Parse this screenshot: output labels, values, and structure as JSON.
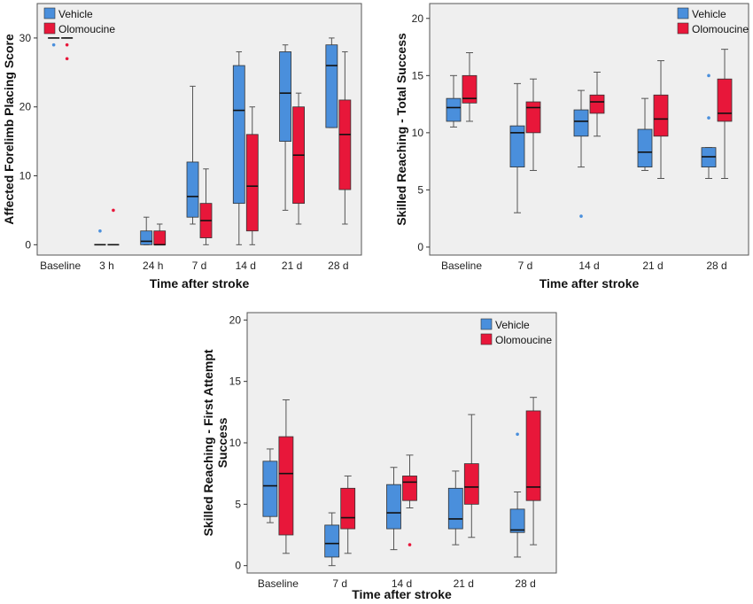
{
  "colors": {
    "vehicle": "#4a8fdc",
    "olomoucine": "#e8173a",
    "plot_bg": "#efefef",
    "frame": "#555555"
  },
  "chart_data": [
    {
      "type": "box",
      "id": "forelimb",
      "xlabel": "Time after stroke",
      "ylabel": "Affected Forelimb Placing Score",
      "ylim": [
        -1.5,
        35
      ],
      "yticks": [
        0,
        10,
        20,
        30
      ],
      "categories": [
        "Baseline",
        "3 h",
        "24 h",
        "7 d",
        "14 d",
        "21 d",
        "28 d"
      ],
      "legend": [
        "Vehicle",
        "Olomoucine"
      ],
      "series": [
        {
          "name": "Vehicle",
          "boxes": [
            {
              "min": 30,
              "q1": 30,
              "median": 30,
              "q3": 30,
              "max": 30,
              "outliers": [
                29
              ]
            },
            {
              "min": 0,
              "q1": 0,
              "median": 0,
              "q3": 0,
              "max": 0,
              "outliers": [
                2
              ]
            },
            {
              "min": 0,
              "q1": 0,
              "median": 0.5,
              "q3": 2,
              "max": 4,
              "outliers": []
            },
            {
              "min": 3,
              "q1": 4,
              "median": 7,
              "q3": 12,
              "max": 23,
              "outliers": []
            },
            {
              "min": 0,
              "q1": 6,
              "median": 19.5,
              "q3": 26,
              "max": 28,
              "outliers": []
            },
            {
              "min": 5,
              "q1": 15,
              "median": 22,
              "q3": 28,
              "max": 29,
              "outliers": []
            },
            {
              "min": 17,
              "q1": 17,
              "median": 26,
              "q3": 29,
              "max": 30,
              "outliers": []
            }
          ]
        },
        {
          "name": "Olomoucine",
          "boxes": [
            {
              "min": 30,
              "q1": 30,
              "median": 30,
              "q3": 30,
              "max": 30,
              "outliers": [
                29,
                27
              ]
            },
            {
              "min": 0,
              "q1": 0,
              "median": 0,
              "q3": 0,
              "max": 0,
              "outliers": [
                5
              ]
            },
            {
              "min": 0,
              "q1": 0,
              "median": 0,
              "q3": 2,
              "max": 3,
              "outliers": []
            },
            {
              "min": 0,
              "q1": 1,
              "median": 3.5,
              "q3": 6,
              "max": 11,
              "outliers": []
            },
            {
              "min": 0,
              "q1": 2,
              "median": 8.5,
              "q3": 16,
              "max": 20,
              "outliers": []
            },
            {
              "min": 3,
              "q1": 6,
              "median": 13,
              "q3": 20,
              "max": 22,
              "outliers": []
            },
            {
              "min": 3,
              "q1": 8,
              "median": 16,
              "q3": 21,
              "max": 28,
              "outliers": []
            }
          ]
        }
      ]
    },
    {
      "type": "box",
      "id": "total",
      "xlabel": "Time after stroke",
      "ylabel": "Skilled Reaching - Total Success",
      "ylim": [
        -0.7,
        21.3
      ],
      "yticks": [
        0,
        5,
        10,
        15,
        20
      ],
      "categories": [
        "Baseline",
        "7 d",
        "14 d",
        "21 d",
        "28 d"
      ],
      "legend": [
        "Vehicle",
        "Olomoucine"
      ],
      "series": [
        {
          "name": "Vehicle",
          "boxes": [
            {
              "min": 10.5,
              "q1": 11,
              "median": 12.2,
              "q3": 13,
              "max": 15,
              "outliers": []
            },
            {
              "min": 3,
              "q1": 7,
              "median": 10,
              "q3": 10.6,
              "max": 14.3,
              "outliers": []
            },
            {
              "min": 7,
              "q1": 9.7,
              "median": 11,
              "q3": 12,
              "max": 13.7,
              "outliers": [
                2.7
              ]
            },
            {
              "min": 6.7,
              "q1": 7,
              "median": 8.3,
              "q3": 10.3,
              "max": 13,
              "outliers": []
            },
            {
              "min": 6,
              "q1": 7,
              "median": 7.9,
              "q3": 8.7,
              "max": 8.7,
              "outliers": [
                15,
                11.3
              ]
            }
          ]
        },
        {
          "name": "Olomoucine",
          "boxes": [
            {
              "min": 11,
              "q1": 12.6,
              "median": 13,
              "q3": 15,
              "max": 17,
              "outliers": []
            },
            {
              "min": 6.7,
              "q1": 10,
              "median": 12.2,
              "q3": 12.7,
              "max": 14.7,
              "outliers": []
            },
            {
              "min": 9.7,
              "q1": 11.7,
              "median": 12.7,
              "q3": 13.3,
              "max": 15.3,
              "outliers": []
            },
            {
              "min": 6,
              "q1": 9.7,
              "median": 11.2,
              "q3": 13.3,
              "max": 16.3,
              "outliers": []
            },
            {
              "min": 6,
              "q1": 11,
              "median": 11.7,
              "q3": 14.7,
              "max": 17.3,
              "outliers": []
            }
          ]
        }
      ]
    },
    {
      "type": "box",
      "id": "first",
      "xlabel": "Time after stroke",
      "ylabel": "Skilled Reaching - First Attempt Success",
      "ylabel_lines": [
        "Skilled Reaching - First Attempt",
        "Success"
      ],
      "ylim": [
        -0.6,
        20.6
      ],
      "yticks": [
        0,
        5,
        10,
        15,
        20
      ],
      "categories": [
        "Baseline",
        "7 d",
        "14 d",
        "21 d",
        "28 d"
      ],
      "legend": [
        "Vehicle",
        "Olomoucine"
      ],
      "series": [
        {
          "name": "Vehicle",
          "boxes": [
            {
              "min": 3.5,
              "q1": 4,
              "median": 6.5,
              "q3": 8.5,
              "max": 9.5,
              "outliers": []
            },
            {
              "min": 0,
              "q1": 0.7,
              "median": 1.8,
              "q3": 3.3,
              "max": 4.3,
              "outliers": []
            },
            {
              "min": 1.3,
              "q1": 3,
              "median": 4.3,
              "q3": 6.6,
              "max": 8,
              "outliers": []
            },
            {
              "min": 1.7,
              "q1": 3,
              "median": 3.8,
              "q3": 6.3,
              "max": 7.7,
              "outliers": []
            },
            {
              "min": 0.7,
              "q1": 2.7,
              "median": 2.9,
              "q3": 4.6,
              "max": 6,
              "outliers": [
                10.7
              ]
            }
          ]
        },
        {
          "name": "Olomoucine",
          "boxes": [
            {
              "min": 1,
              "q1": 2.5,
              "median": 7.5,
              "q3": 10.5,
              "max": 13.5,
              "outliers": []
            },
            {
              "min": 1,
              "q1": 3,
              "median": 3.9,
              "q3": 6.3,
              "max": 7.3,
              "outliers": []
            },
            {
              "min": 4.7,
              "q1": 5.3,
              "median": 6.8,
              "q3": 7.3,
              "max": 9,
              "outliers": [
                1.7
              ]
            },
            {
              "min": 2.3,
              "q1": 5,
              "median": 6.4,
              "q3": 8.3,
              "max": 12.3,
              "outliers": []
            },
            {
              "min": 1.7,
              "q1": 5.3,
              "median": 6.4,
              "q3": 12.6,
              "max": 13.7,
              "outliers": []
            }
          ]
        }
      ]
    }
  ]
}
